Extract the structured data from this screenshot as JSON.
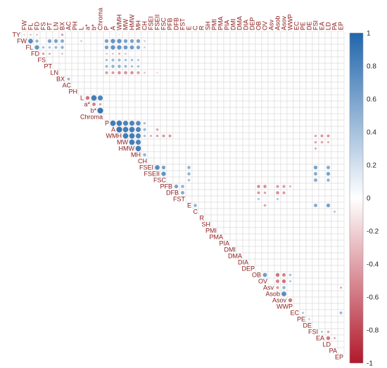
{
  "chart_data": {
    "type": "heatmap",
    "variables": [
      "TY",
      "FW",
      "FL",
      "FD",
      "FS",
      "PT",
      "LN",
      "BX",
      "AC",
      "PH",
      "L",
      "a*",
      "b*",
      "Chroma",
      "P",
      "A",
      "WMH",
      "MW",
      "HMW",
      "MH",
      "CH",
      "FSEI",
      "FSEII",
      "FSC",
      "PFB",
      "DFB",
      "FST",
      "E",
      "C",
      "R",
      "SH",
      "PMI",
      "PMA",
      "PIA",
      "DMI",
      "DMA",
      "DIA",
      "DEP",
      "OB",
      "OV",
      "Asv",
      "Asob",
      "Asov",
      "WWP",
      "EC",
      "PE",
      "DE",
      "FSI",
      "EA",
      "LD",
      "PA",
      "EP"
    ],
    "colorbar": {
      "range": [
        -1,
        1
      ],
      "ticks": [
        "1",
        "0.8",
        "0.6",
        "0.4",
        "0.2",
        "0",
        "-0.2",
        "-0.4",
        "-0.6",
        "-0.8",
        "-1"
      ],
      "colors": {
        "negative": "#b2182b",
        "zero": "#ffffff",
        "positive": "#2166ac"
      }
    },
    "correlations": [
      [
        0,
        1,
        -0.25
      ],
      [
        0,
        2,
        -0.3
      ],
      [
        0,
        3,
        -0.3
      ],
      [
        0,
        7,
        -0.4
      ],
      [
        0,
        16,
        0.2
      ],
      [
        1,
        2,
        0.75
      ],
      [
        1,
        3,
        0.5
      ],
      [
        1,
        5,
        0.6
      ],
      [
        1,
        6,
        0.6
      ],
      [
        1,
        7,
        0.55
      ],
      [
        1,
        10,
        0.3
      ],
      [
        1,
        14,
        0.6
      ],
      [
        1,
        15,
        0.7
      ],
      [
        1,
        16,
        0.7
      ],
      [
        1,
        17,
        0.6
      ],
      [
        1,
        18,
        0.6
      ],
      [
        1,
        19,
        0.6
      ],
      [
        1,
        20,
        0.3
      ],
      [
        2,
        3,
        0.7
      ],
      [
        2,
        4,
        0.4
      ],
      [
        2,
        5,
        0.4
      ],
      [
        2,
        6,
        0.45
      ],
      [
        2,
        7,
        0.5
      ],
      [
        2,
        14,
        0.6
      ],
      [
        2,
        15,
        0.7
      ],
      [
        2,
        16,
        0.7
      ],
      [
        2,
        17,
        0.65
      ],
      [
        2,
        18,
        0.65
      ],
      [
        2,
        19,
        0.6
      ],
      [
        2,
        20,
        0.3
      ],
      [
        3,
        4,
        -0.4
      ],
      [
        3,
        5,
        -0.35
      ],
      [
        3,
        7,
        -0.3
      ],
      [
        3,
        14,
        -0.3
      ],
      [
        3,
        15,
        -0.3
      ],
      [
        3,
        16,
        -0.35
      ],
      [
        3,
        17,
        -0.3
      ],
      [
        4,
        14,
        0.4
      ],
      [
        4,
        15,
        0.45
      ],
      [
        4,
        16,
        0.45
      ],
      [
        4,
        17,
        0.4
      ],
      [
        4,
        18,
        0.4
      ],
      [
        4,
        19,
        0.35
      ],
      [
        5,
        14,
        0.45
      ],
      [
        5,
        15,
        0.5
      ],
      [
        5,
        16,
        0.5
      ],
      [
        5,
        17,
        0.45
      ],
      [
        5,
        18,
        0.4
      ],
      [
        5,
        19,
        0.4
      ],
      [
        6,
        14,
        -0.45
      ],
      [
        6,
        15,
        -0.45
      ],
      [
        6,
        16,
        -0.5
      ],
      [
        6,
        17,
        -0.5
      ],
      [
        6,
        18,
        -0.5
      ],
      [
        6,
        19,
        -0.45
      ],
      [
        6,
        20,
        -0.3
      ],
      [
        6,
        22,
        -0.25
      ],
      [
        7,
        8,
        0.45
      ],
      [
        10,
        11,
        -0.6
      ],
      [
        10,
        12,
        0.85
      ],
      [
        10,
        13,
        0.8
      ],
      [
        11,
        12,
        -0.55
      ],
      [
        11,
        13,
        -0.4
      ],
      [
        12,
        13,
        0.9
      ],
      [
        14,
        15,
        0.85
      ],
      [
        14,
        16,
        0.85
      ],
      [
        14,
        17,
        0.8
      ],
      [
        14,
        18,
        0.8
      ],
      [
        14,
        19,
        0.75
      ],
      [
        14,
        20,
        0.4
      ],
      [
        15,
        16,
        0.9
      ],
      [
        15,
        17,
        0.85
      ],
      [
        15,
        18,
        0.85
      ],
      [
        15,
        19,
        0.8
      ],
      [
        15,
        20,
        0.45
      ],
      [
        15,
        22,
        -0.4
      ],
      [
        16,
        17,
        0.85
      ],
      [
        16,
        18,
        0.85
      ],
      [
        16,
        19,
        0.8
      ],
      [
        16,
        20,
        0.4
      ],
      [
        16,
        21,
        -0.35
      ],
      [
        16,
        22,
        -0.4
      ],
      [
        16,
        23,
        -0.45
      ],
      [
        16,
        24,
        -0.45
      ],
      [
        16,
        47,
        -0.4
      ],
      [
        16,
        48,
        -0.45
      ],
      [
        16,
        49,
        -0.45
      ],
      [
        17,
        18,
        0.85
      ],
      [
        17,
        19,
        0.8
      ],
      [
        17,
        47,
        -0.4
      ],
      [
        17,
        48,
        -0.4
      ],
      [
        17,
        49,
        -0.35
      ],
      [
        18,
        19,
        0.85
      ],
      [
        18,
        47,
        -0.35
      ],
      [
        19,
        20,
        0.5
      ],
      [
        21,
        22,
        0.75
      ],
      [
        21,
        23,
        0.6
      ],
      [
        21,
        27,
        0.5
      ],
      [
        21,
        47,
        0.6
      ],
      [
        21,
        49,
        0.55
      ],
      [
        22,
        23,
        0.7
      ],
      [
        22,
        27,
        0.5
      ],
      [
        22,
        47,
        0.55
      ],
      [
        22,
        49,
        0.6
      ],
      [
        23,
        27,
        0.4
      ],
      [
        23,
        47,
        0.55
      ],
      [
        23,
        49,
        0.5
      ],
      [
        24,
        25,
        0.6
      ],
      [
        24,
        26,
        0.5
      ],
      [
        24,
        38,
        -0.5
      ],
      [
        24,
        39,
        -0.5
      ],
      [
        24,
        41,
        -0.45
      ],
      [
        24,
        42,
        -0.45
      ],
      [
        24,
        43,
        -0.35
      ],
      [
        25,
        26,
        0.55
      ],
      [
        25,
        38,
        -0.45
      ],
      [
        25,
        39,
        -0.4
      ],
      [
        25,
        41,
        -0.5
      ],
      [
        25,
        42,
        -0.45
      ],
      [
        26,
        38,
        0.35
      ],
      [
        26,
        41,
        0.35
      ],
      [
        27,
        28,
        0.5
      ],
      [
        27,
        39,
        -0.4
      ],
      [
        27,
        47,
        0.55
      ],
      [
        27,
        49,
        0.6
      ],
      [
        28,
        50,
        0.35
      ],
      [
        38,
        39,
        0.65
      ],
      [
        38,
        41,
        -0.6
      ],
      [
        38,
        42,
        -0.55
      ],
      [
        38,
        43,
        0.4
      ],
      [
        39,
        41,
        -0.55
      ],
      [
        39,
        42,
        -0.6
      ],
      [
        39,
        43,
        0.35
      ],
      [
        40,
        41,
        -0.45
      ],
      [
        40,
        42,
        0.5
      ],
      [
        40,
        51,
        -0.35
      ],
      [
        41,
        42,
        0.75
      ],
      [
        42,
        43,
        -0.6
      ],
      [
        44,
        45,
        0.35
      ],
      [
        44,
        51,
        0.45
      ],
      [
        45,
        46,
        0.3
      ],
      [
        47,
        48,
        0.35
      ],
      [
        47,
        49,
        -0.4
      ],
      [
        48,
        49,
        -0.6
      ],
      [
        48,
        50,
        -0.35
      ]
    ]
  }
}
